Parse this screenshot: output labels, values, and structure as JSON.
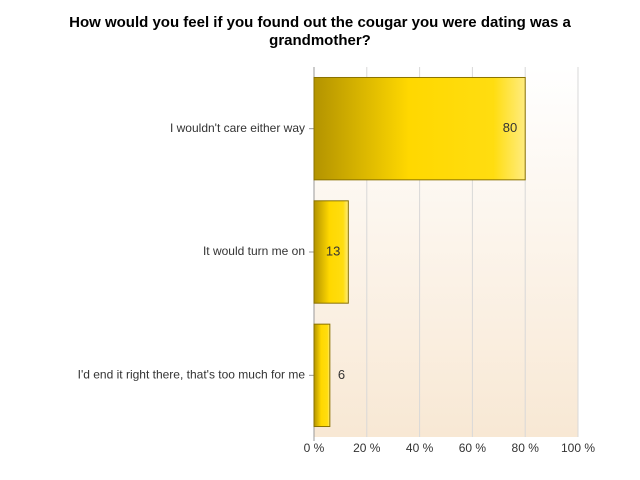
{
  "chart_data": {
    "type": "bar",
    "orientation": "horizontal",
    "title": "How would you feel if you found out the cougar you were dating was a grandmother?",
    "categories": [
      "I wouldn't care either way",
      "It would turn me on",
      "I'd end it right there, that's too much for me"
    ],
    "values": [
      80,
      13,
      6
    ],
    "color": "#ffd800",
    "xlim": [
      0,
      100
    ],
    "xticks": [
      {
        "value": 0,
        "label": "0 %"
      },
      {
        "value": 20,
        "label": "20 %"
      },
      {
        "value": 40,
        "label": "40 %"
      },
      {
        "value": 60,
        "label": "60 %"
      },
      {
        "value": 80,
        "label": "80 %"
      },
      {
        "value": 100,
        "label": "100 %"
      }
    ],
    "grid": true
  }
}
